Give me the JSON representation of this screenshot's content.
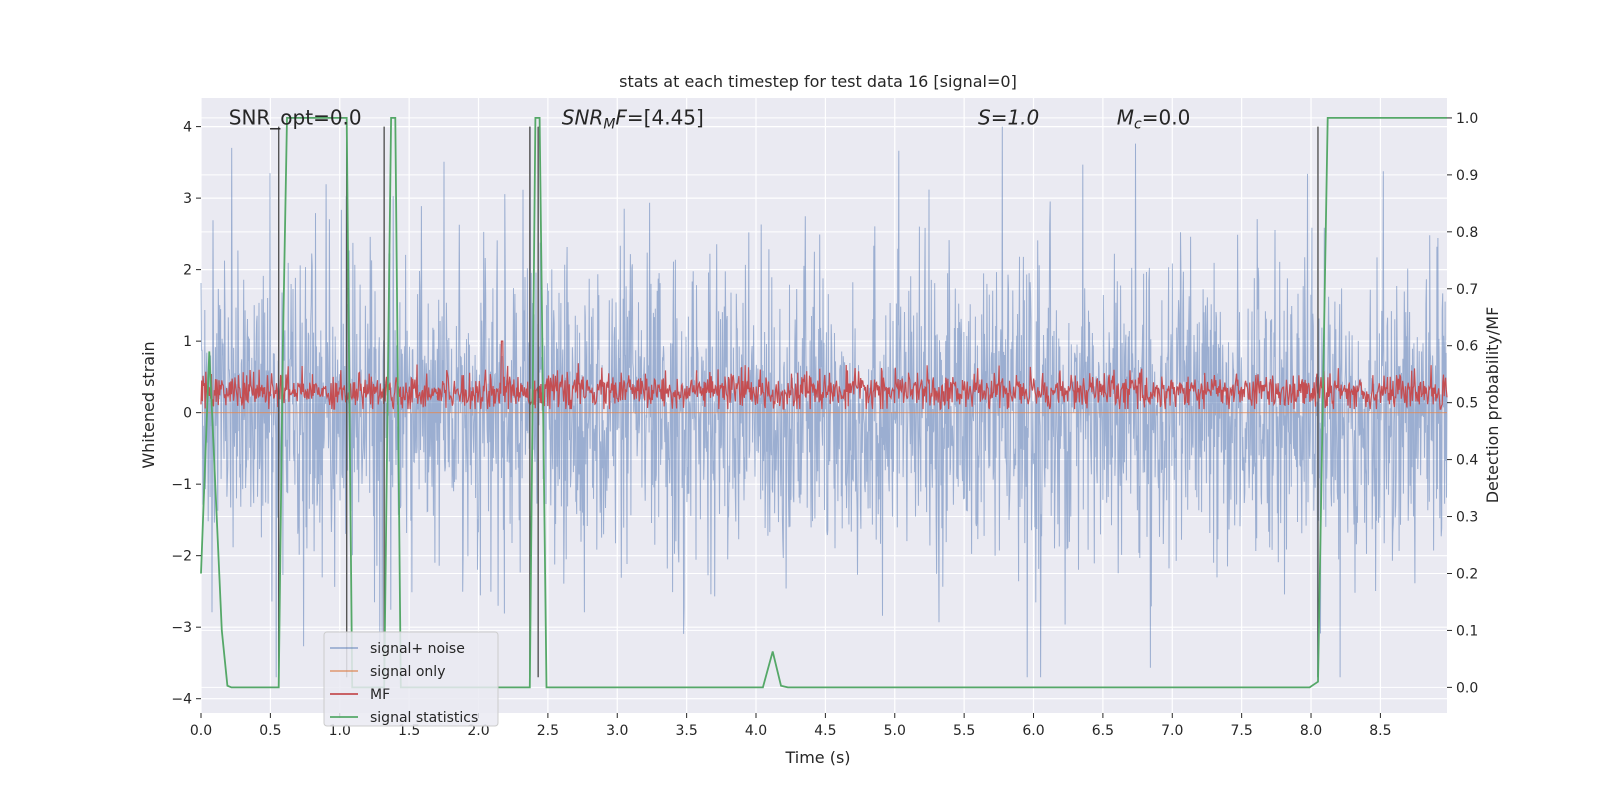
{
  "chart_data": {
    "type": "line",
    "title": "stats at each timestep for test data 16 [signal=0]",
    "xlabel": "Time (s)",
    "ylabel": "Whitened strain",
    "ylabel_right": "Detection probability/MF",
    "xlim": [
      0.0,
      8.98
    ],
    "ylim": [
      -4.2,
      4.4
    ],
    "ylim_right": [
      -0.045,
      1.035
    ],
    "xticks": [
      "0.0",
      "0.5",
      "1.0",
      "1.5",
      "2.0",
      "2.5",
      "3.0",
      "3.5",
      "4.0",
      "4.5",
      "5.0",
      "5.5",
      "6.0",
      "6.5",
      "7.0",
      "7.5",
      "8.0",
      "8.5"
    ],
    "xtick_values": [
      0.0,
      0.5,
      1.0,
      1.5,
      2.0,
      2.5,
      3.0,
      3.5,
      4.0,
      4.5,
      5.0,
      5.5,
      6.0,
      6.5,
      7.0,
      7.5,
      8.0,
      8.5
    ],
    "yticks": [
      "4",
      "3",
      "2",
      "1",
      "0",
      "−1",
      "−2",
      "−3",
      "−4"
    ],
    "ytick_values": [
      4,
      3,
      2,
      1,
      0,
      -1,
      -2,
      -3,
      -4
    ],
    "yticks_right": [
      "1.0",
      "0.9",
      "0.8",
      "0.7",
      "0.6",
      "0.5",
      "0.4",
      "0.3",
      "0.2",
      "0.1",
      "0.0"
    ],
    "ytick_right_values": [
      1.0,
      0.9,
      0.8,
      0.7,
      0.6,
      0.5,
      0.4,
      0.3,
      0.2,
      0.1,
      0.0
    ],
    "grid": true,
    "legend_position": "lower-left",
    "annotations": [
      {
        "text": "SNR_opt=0.0",
        "x": 0.2,
        "y": 4.1
      },
      {
        "text": "SNR_MF=[4.45]",
        "x": 2.6,
        "y": 4.1
      },
      {
        "text": "S=1.0",
        "x": 5.6,
        "y": 4.1
      },
      {
        "text": "M_c=0.0",
        "x": 6.6,
        "y": 4.1
      }
    ],
    "series": [
      {
        "name": "signal+ noise",
        "color": "#4c72b0",
        "axis": "left",
        "description_values": "noise band roughly between -2.5 and 3.5, peaks near 4"
      },
      {
        "name": "signal only",
        "color": "#dd8452",
        "axis": "left",
        "values_constant": 0.0
      },
      {
        "name": "MF",
        "color": "#c44e52",
        "axis": "left",
        "band": [
          0.05,
          0.75
        ],
        "spike": {
          "x": 2.17,
          "y": 1.0
        }
      },
      {
        "name": "signal statistics",
        "color": "#55a868",
        "axis": "right",
        "x": [
          0.0,
          0.06,
          0.15,
          0.19,
          0.22,
          0.56,
          0.59,
          0.62,
          0.65,
          1.0,
          1.05,
          1.09,
          1.32,
          1.35,
          1.37,
          1.4,
          1.44,
          2.37,
          2.41,
          2.44,
          2.49,
          4.05,
          4.12,
          4.18,
          4.23,
          7.99,
          8.05,
          8.12,
          8.98
        ],
        "values": [
          0.2,
          0.59,
          0.1,
          0.003,
          0.0,
          0.0,
          0.6,
          1.0,
          1.0,
          1.0,
          1.0,
          0.0,
          0.0,
          0.6,
          1.0,
          1.0,
          0.0,
          0.0,
          1.0,
          1.0,
          0.0,
          0.0,
          0.063,
          0.003,
          0.0,
          0.0,
          0.01,
          1.0,
          1.0
        ]
      }
    ],
    "vertical_lines": [
      0.56,
      1.05,
      1.32,
      2.37,
      2.43,
      8.05
    ]
  }
}
